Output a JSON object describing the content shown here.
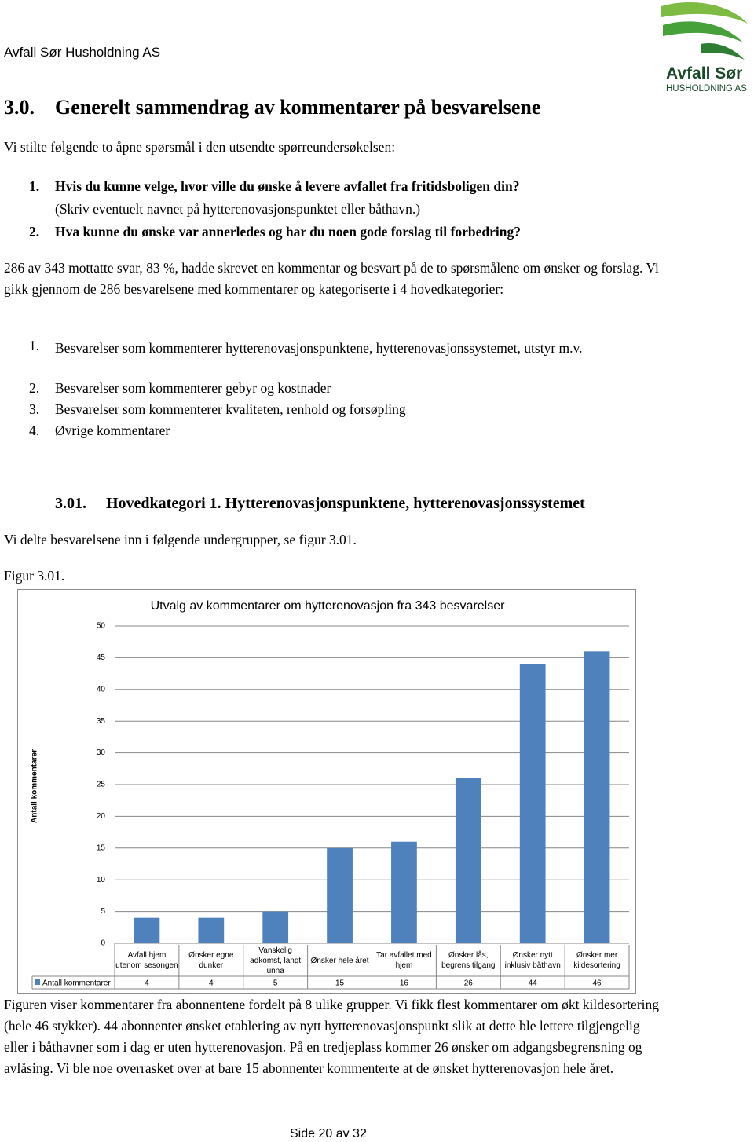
{
  "header": {
    "company": "Avfall Sør Husholdning AS",
    "logo_name": "Avfall Sør",
    "logo_sub": "HUSHOLDNING AS"
  },
  "section": {
    "number": "3.0.",
    "title": "Generelt sammendrag av kommentarer på besvarelsene"
  },
  "intro": "Vi stilte følgende to åpne spørsmål i den utsendte spørreundersøkelsen:",
  "questions": [
    {
      "number": "1.",
      "text": "Hvis du kunne velge, hvor ville du ønske å levere avfallet fra fritidsboligen din?",
      "note": "(Skriv eventuelt navnet på hytterenovasjonspunktet eller båthavn.)"
    },
    {
      "number": "2.",
      "text": "Hva kunne du ønske var annerledes og har du noen gode forslag til forbedring?"
    }
  ],
  "paragraph": "286 av 343 mottatte svar, 83 %, hadde skrevet en kommentar og besvart på de to spørsmålene om ønsker og forslag. Vi gikk gjennom de 286 besvarelsene med kommentarer og kategoriserte i 4 hovedkategorier:",
  "main_categories": [
    {
      "number": "1.",
      "text": "Besvarelser som kommenterer hytterenovasjonspunktene, hytterenovasjonssystemet, utstyr m.v."
    },
    {
      "number": "2.",
      "text": "Besvarelser som kommenterer gebyr og kostnader"
    },
    {
      "number": "3.",
      "text": "Besvarelser som kommenterer kvaliteten, renhold og forsøpling"
    },
    {
      "number": "4.",
      "text": "Øvrige kommentarer"
    }
  ],
  "subsection": {
    "number": "3.01.",
    "title": "Hovedkategori 1. Hytterenovasjonspunktene, hytterenovasjonssystemet"
  },
  "sub_intro": "Vi delte besvarelsene inn i følgende undergrupper, se figur 3.01.",
  "figure_label": "Figur 3.01.",
  "chart_data": {
    "type": "bar",
    "title": "Utvalg av kommentarer om hytterenovasjon fra 343 besvarelser",
    "y_label": "Antall kommentarer",
    "categories": [
      "Avfall hjem utenom sesongen",
      "Ønsker egne dunker",
      "Vanskelig adkomst, langt unna",
      "Ønsker hele året",
      "Tar avfallet med hjem",
      "Ønsker lås, begrens tilgang",
      "Ønsker nytt inklusiv båthavn",
      "Ønsker mer kildesortering"
    ],
    "series": [
      {
        "name": "Antall kommentarer",
        "color": "#4f81bd",
        "values": [
          4,
          4,
          5,
          15,
          16,
          26,
          44,
          46
        ]
      }
    ],
    "ylim": [
      0,
      50
    ],
    "yticks": [
      0,
      5,
      10,
      15,
      20,
      25,
      30,
      35,
      40,
      45,
      50
    ],
    "grid": true,
    "data_table": true
  },
  "caption": "Figuren viser kommentarer fra abonnentene fordelt på 8 ulike grupper. Vi fikk flest kommentarer om økt kildesortering (hele 46 stykker). 44 abonnenter ønsket etablering av nytt hytterenovasjonspunkt slik at dette ble lettere tilgjengelig eller i båthavner som i dag er uten hytterenovasjon.  På en tredjeplass kommer 26 ønsker om adgangsbegrensning og avlåsing. Vi ble noe overrasket over at bare 15 abonnenter kommenterte at de ønsket hytterenovasjon hele året.",
  "footer": {
    "page": "Side 20 av 32"
  }
}
